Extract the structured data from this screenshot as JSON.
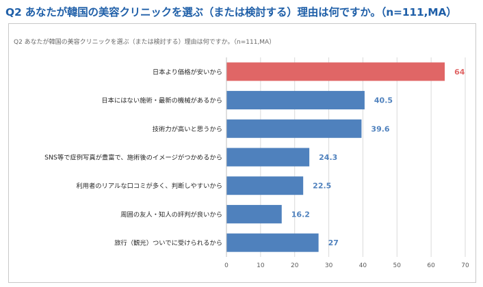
{
  "page": {
    "title": "Q2 あなたが韓国の美容クリニックを選ぶ（または検討する）理由は何ですか。（n=111,MA）"
  },
  "chart_data": {
    "type": "bar",
    "orientation": "horizontal",
    "title": "Q2 あなたが韓国の美容クリニックを選ぶ（または検討する）理由は何ですか。（n=111,MA）",
    "categories": [
      "日本より価格が安いから",
      "日本にはない施術・最新の機械があるから",
      "技術力が高いと思うから",
      "SNS等で症例写真が豊富で、施術後のイメージがつかめるから",
      "利用者のリアルな口コミが多く、判断しやすいから",
      "周囲の友人・知人の評判が良いから",
      "旅行（観光）ついでに受けられるから"
    ],
    "values": [
      64,
      40.5,
      39.6,
      24.3,
      22.5,
      16.2,
      27
    ],
    "value_labels": [
      "64",
      "40.5",
      "39.6",
      "24.3",
      "22.5",
      "16.2",
      "27"
    ],
    "xlim": [
      0,
      70
    ],
    "x_ticks": [
      0,
      10,
      20,
      30,
      40,
      50,
      60,
      70
    ],
    "x_tick_labels": [
      "0",
      "10",
      "20",
      "30",
      "40",
      "50",
      "60",
      "70"
    ],
    "grid": true,
    "colors": {
      "highlight": "#e06666",
      "default": "#4f81bd",
      "highlight_label": "#e06666",
      "default_label": "#4f81bd",
      "grid": "#d9d9d9",
      "title": "#1f5fa8"
    },
    "highlight_index": 0
  }
}
